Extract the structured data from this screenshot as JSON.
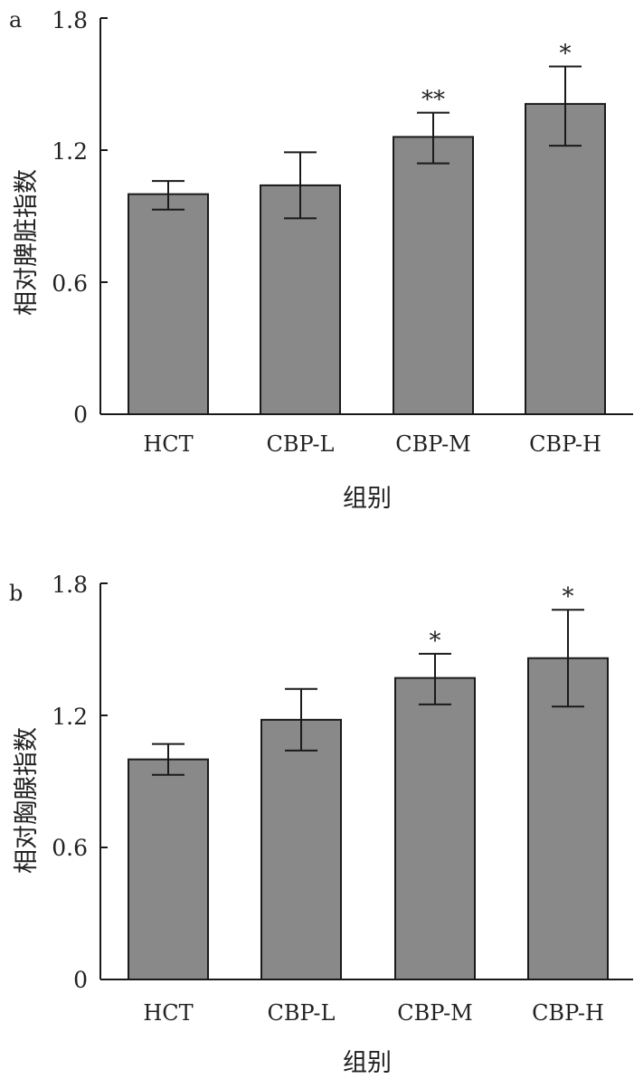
{
  "colors": {
    "bar_fill": "#898989",
    "bar_stroke": "#1a1a1a",
    "axis": "#1a1a1a",
    "background": "#ffffff"
  },
  "chart_data": [
    {
      "type": "bar",
      "panel_label": "a",
      "categories": [
        "HCT",
        "CBP-L",
        "CBP-M",
        "CBP-H"
      ],
      "values": [
        1.0,
        1.04,
        1.26,
        1.41
      ],
      "error_low": [
        0.93,
        0.89,
        1.14,
        1.22
      ],
      "error_high": [
        1.06,
        1.19,
        1.37,
        1.58
      ],
      "significance": [
        "",
        "",
        "**",
        "*"
      ],
      "xlabel": "组别",
      "ylabel": "相对脾脏指数",
      "ylim": [
        0,
        1.8
      ],
      "yticks": [
        "0",
        "0.6",
        "1.2",
        "1.8"
      ],
      "grid": false
    },
    {
      "type": "bar",
      "panel_label": "b",
      "categories": [
        "HCT",
        "CBP-L",
        "CBP-M",
        "CBP-H"
      ],
      "values": [
        1.0,
        1.18,
        1.37,
        1.46
      ],
      "error_low": [
        0.93,
        1.04,
        1.25,
        1.24
      ],
      "error_high": [
        1.07,
        1.32,
        1.48,
        1.68
      ],
      "significance": [
        "",
        "",
        "*",
        "*"
      ],
      "xlabel": "组别",
      "ylabel": "相对胸腺指数",
      "ylim": [
        0,
        1.8
      ],
      "yticks": [
        "0",
        "0.6",
        "1.2",
        "1.8"
      ],
      "grid": false
    }
  ]
}
